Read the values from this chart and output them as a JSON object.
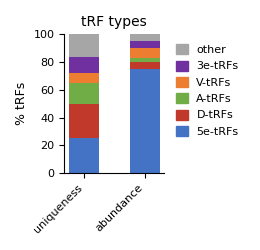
{
  "title": "tRF types",
  "categories": [
    "uniqueness",
    "abundance"
  ],
  "ylabel": "% tRFs",
  "series": [
    {
      "label": "5e-tRFs",
      "color": "#4472C4",
      "values": [
        25,
        75
      ]
    },
    {
      "label": "D-tRFs",
      "color": "#C0392B",
      "values": [
        25,
        5
      ]
    },
    {
      "label": "A-tRFs",
      "color": "#70AD47",
      "values": [
        15,
        3
      ]
    },
    {
      "label": "V-tRFs",
      "color": "#ED7D31",
      "values": [
        7,
        7
      ]
    },
    {
      "label": "3e-tRFs",
      "color": "#7030A0",
      "values": [
        12,
        5
      ]
    },
    {
      "label": "other",
      "color": "#A6A6A6",
      "values": [
        16,
        5
      ]
    }
  ],
  "ylim": [
    0,
    100
  ],
  "yticks": [
    0,
    20,
    40,
    60,
    80,
    100
  ],
  "legend_order": [
    "other",
    "3e-tRFs",
    "V-tRFs",
    "A-tRFs",
    "D-tRFs",
    "5e-tRFs"
  ],
  "bar_width": 0.5,
  "title_fontsize": 10,
  "label_fontsize": 9,
  "tick_fontsize": 8,
  "legend_fontsize": 8
}
